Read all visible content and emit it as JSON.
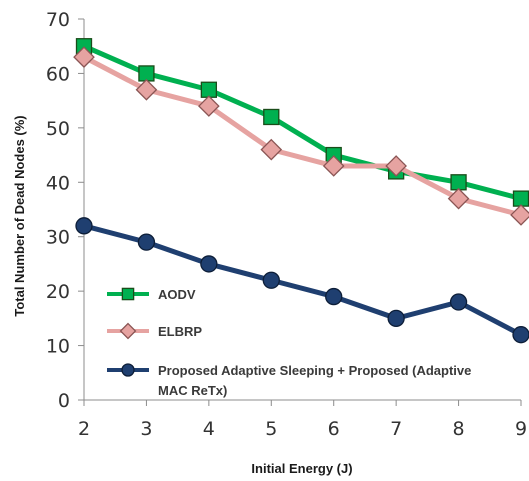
{
  "chart_data": {
    "type": "line",
    "title": "",
    "xlabel": "Initial Energy (J)",
    "ylabel": "Total Number of Dead Nodes (%)",
    "x": [
      2,
      3,
      4,
      5,
      6,
      7,
      8,
      9
    ],
    "xlim": [
      2,
      9
    ],
    "ylim": [
      0,
      70
    ],
    "y_ticks": [
      0,
      10,
      20,
      30,
      40,
      50,
      60,
      70
    ],
    "grid": false,
    "legend_position": "bottom-right",
    "series": [
      {
        "name": "AODV",
        "marker": "square",
        "line_color": "#00b050",
        "marker_fill": "#00b050",
        "marker_edge": "#1a4d1a",
        "values": [
          65,
          60,
          57,
          52,
          45,
          42,
          40,
          37
        ]
      },
      {
        "name": "ELBRP",
        "marker": "diamond",
        "line_color": "#e6a3a1",
        "marker_fill": "#e6a3a1",
        "marker_edge": "#8a5554",
        "values": [
          63,
          57,
          54,
          46,
          43,
          43,
          37,
          34
        ]
      },
      {
        "name": "Proposed Adaptive Sleeping + Proposed (Adaptive MAC ReTx)",
        "legend_lines": [
          "Proposed Adaptive Sleeping + Proposed (Adaptive",
          "MAC ReTx)"
        ],
        "marker": "circle",
        "line_color": "#1f3f70",
        "marker_fill": "#1f3f70",
        "marker_edge": "#0d1e38",
        "values": [
          32,
          29,
          25,
          22,
          19,
          15,
          18,
          12
        ]
      }
    ]
  }
}
